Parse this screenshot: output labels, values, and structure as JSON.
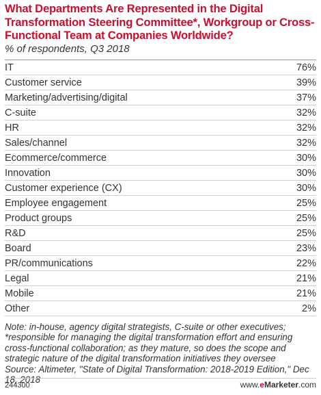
{
  "chart_data": {
    "type": "table",
    "title": "What Departments Are Represented in the Digital Transformation Steering Committee*, Workgroup or Cross-Functional Team at Companies Worldwide?",
    "subtitle": "% of respondents, Q3 2018",
    "unit": "%",
    "categories": [
      "IT",
      "Customer service",
      "Marketing/advertising/digital",
      "C-suite",
      "HR",
      "Sales/channel",
      "Ecommerce/commerce",
      "Innovation",
      "Customer experience (CX)",
      "Employee engagement",
      "Product groups",
      "R&D",
      "Board",
      "PR/communications",
      "Legal",
      "Mobile",
      "Other"
    ],
    "values": [
      76,
      39,
      37,
      32,
      32,
      32,
      30,
      30,
      30,
      25,
      25,
      25,
      23,
      22,
      21,
      21,
      2
    ]
  },
  "notes": {
    "note": "Note: in-house, agency digital strategists, C-suite or other executives; *responsible for managing the digital transformation effort and ensuring cross-functional collaboration; as they mature, so does the scope and strategic nature of the digital transformation initiatives they oversee",
    "source": "Source: Altimeter, \"State of Digital Transformation: 2018-2019 Edition,\" Dec 18, 2018"
  },
  "footer": {
    "chart_id": "244300",
    "brand_prefix": "www.",
    "brand_e": "e",
    "brand_name": "Marketer",
    "brand_suffix": ".com"
  },
  "colors": {
    "title": "#c8102e",
    "text": "#333333",
    "rule": "#cfcfcf"
  }
}
